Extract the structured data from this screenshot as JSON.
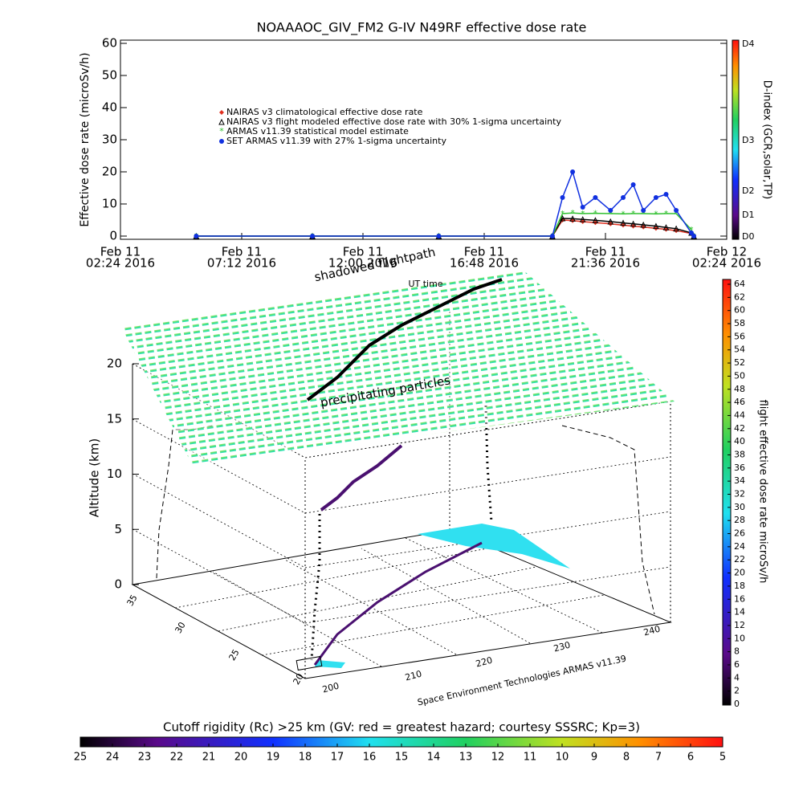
{
  "chart_data": {
    "type": "line",
    "title": "NOAAAOC_GIV_FM2 G-IV   N49RF  effective dose rate",
    "y_label": "Effective dose rate (microSv/h)",
    "xlim": [
      2.4,
      26.4
    ],
    "xticks": [
      {
        "value": 2.4,
        "label": [
          "Feb 11",
          "02:24 2016"
        ]
      },
      {
        "value": 7.2,
        "label": [
          "Feb 11",
          "07:12 2016"
        ]
      },
      {
        "value": 12.0,
        "label": [
          "Feb 11",
          "12:00 2016"
        ]
      },
      {
        "value": 16.8,
        "label": [
          "Feb 11",
          "16:48 2016"
        ]
      },
      {
        "value": 21.6,
        "label": [
          "Feb 11",
          "21:36 2016"
        ]
      },
      {
        "value": 26.4,
        "label": [
          "Feb 12",
          "02:24 2016"
        ]
      }
    ],
    "x_label": "UT time",
    "ylim": [
      -1,
      61
    ],
    "yticks": [
      0,
      10,
      20,
      30,
      40,
      50,
      60
    ],
    "x": [
      5.4,
      10,
      15,
      19.5,
      19.9,
      20.3,
      20.7,
      21.2,
      21.8,
      22.3,
      22.7,
      23.1,
      23.6,
      24.0,
      24.4,
      25.0,
      25.1
    ],
    "series": [
      {
        "name": "NAIRAS v3 climatological effective dose rate",
        "color": "#e03020",
        "marker": "diamond",
        "values": [
          0,
          0,
          0,
          0,
          5,
          4.8,
          4.5,
          4.2,
          3.8,
          3.4,
          3.1,
          2.8,
          2.4,
          2.1,
          1.7,
          0.8,
          0
        ]
      },
      {
        "name": "NAIRAS v3 flight modeled effective dose rate with 30% 1-sigma uncertainty",
        "color": "#000000",
        "marker": "triangle",
        "values": [
          0,
          0,
          0,
          0,
          5.5,
          5.4,
          5.2,
          4.9,
          4.5,
          4.1,
          3.8,
          3.5,
          3.1,
          2.7,
          2.3,
          1,
          0
        ]
      },
      {
        "name": "ARMAS v11.39 statistical model estimate",
        "color": "#30c030",
        "marker": "star",
        "values": [
          0,
          0,
          0,
          0,
          7,
          7.2,
          7,
          7.1,
          7,
          6.9,
          7,
          7,
          6.9,
          7,
          7,
          2,
          0
        ]
      },
      {
        "name": "SET ARMAS v11.39 with 27% 1-sigma uncertainty",
        "color": "#1030e0",
        "marker": "circle",
        "values": [
          0,
          0,
          0,
          0,
          12,
          20,
          9,
          12,
          8,
          12,
          16,
          8,
          12,
          13,
          8,
          1,
          0
        ]
      }
    ],
    "colorbar": {
      "label": "D-index (GCR,solar,TP)",
      "ticks": [
        "D0",
        "D1",
        "D2",
        "D3",
        "D4"
      ]
    }
  },
  "scene3d": {
    "shadow_label": "shadowed flightpath",
    "sheet_label": "precipitating particles",
    "z_label": "Altitude (km)",
    "zticks": [
      0,
      5,
      10,
      15,
      20
    ],
    "zlim": [
      0,
      20
    ],
    "yticks": [
      35,
      30,
      25,
      20
    ],
    "xticks": [
      200,
      210,
      220,
      230,
      240
    ],
    "credit": "Space Environment Technologies ARMAS v11.39"
  },
  "dose_colorbar": {
    "label": "flight effective dose rate microSv/h",
    "lim": [
      0,
      64
    ],
    "ticks": [
      0,
      2,
      4,
      6,
      8,
      10,
      12,
      14,
      16,
      18,
      20,
      22,
      24,
      26,
      28,
      30,
      32,
      34,
      36,
      38,
      40,
      42,
      44,
      46,
      48,
      50,
      52,
      54,
      56,
      58,
      60,
      62,
      64
    ]
  },
  "rigidity_colorbar": {
    "label": "Cutoff rigidity (Rc) >25 km (GV: red = greatest hazard; courtesy SSSRC; Kp=3)",
    "lim": [
      25,
      5
    ],
    "ticks": [
      25,
      24,
      23,
      22,
      21,
      20,
      19,
      18,
      17,
      16,
      15,
      14,
      13,
      12,
      11,
      10,
      9,
      8,
      7,
      6,
      5
    ]
  }
}
